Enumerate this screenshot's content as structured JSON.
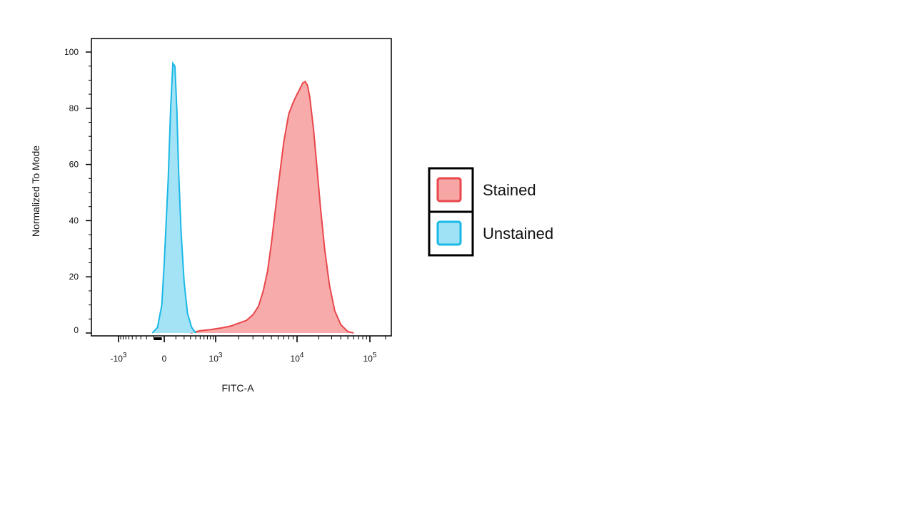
{
  "chart_data": {
    "type": "area",
    "title": "",
    "xlabel": "FITC-A",
    "ylabel": "Normalized To Mode",
    "x_scale": "biexponential",
    "x_ticks": [
      {
        "value": -1000,
        "base": "-10",
        "exp": "3"
      },
      {
        "value": 0,
        "base": "0",
        "exp": ""
      },
      {
        "value": 1000,
        "base": "10",
        "exp": "3"
      },
      {
        "value": 10000,
        "base": "10",
        "exp": "4"
      },
      {
        "value": 100000,
        "base": "10",
        "exp": "5"
      }
    ],
    "y_ticks": [
      "0",
      "20",
      "40",
      "60",
      "80",
      "100"
    ],
    "ylim": [
      0,
      100
    ],
    "grid": false,
    "legend_position": "right",
    "series": [
      {
        "name": "Stained",
        "color": "#e8474b",
        "fill": "#f7a6a6",
        "points": [
          [
            300,
            0
          ],
          [
            500,
            0.8
          ],
          [
            800,
            1.2
          ],
          [
            1200,
            1.8
          ],
          [
            1600,
            2.5
          ],
          [
            2000,
            3.5
          ],
          [
            2500,
            4.5
          ],
          [
            3000,
            6.5
          ],
          [
            3500,
            9.5
          ],
          [
            4000,
            15
          ],
          [
            4500,
            22
          ],
          [
            5000,
            32
          ],
          [
            6000,
            52
          ],
          [
            7000,
            68
          ],
          [
            8000,
            78
          ],
          [
            9000,
            82
          ],
          [
            10000,
            85
          ],
          [
            11000,
            87
          ],
          [
            12000,
            89
          ],
          [
            13000,
            89.5
          ],
          [
            14000,
            88
          ],
          [
            15000,
            84
          ],
          [
            17000,
            72
          ],
          [
            19000,
            58
          ],
          [
            21000,
            45
          ],
          [
            24000,
            30
          ],
          [
            28000,
            17
          ],
          [
            33000,
            8
          ],
          [
            40000,
            3
          ],
          [
            50000,
            0.5
          ],
          [
            60000,
            0
          ]
        ]
      },
      {
        "name": "Unstained",
        "color": "#1ab8e6",
        "fill": "#9fe2f6",
        "points": [
          [
            -120,
            0
          ],
          [
            -60,
            2
          ],
          [
            -20,
            10
          ],
          [
            0,
            25
          ],
          [
            30,
            55
          ],
          [
            50,
            80
          ],
          [
            70,
            96
          ],
          [
            90,
            95
          ],
          [
            110,
            80
          ],
          [
            130,
            58
          ],
          [
            160,
            36
          ],
          [
            200,
            18
          ],
          [
            250,
            7
          ],
          [
            320,
            2
          ],
          [
            400,
            0
          ]
        ]
      }
    ]
  }
}
